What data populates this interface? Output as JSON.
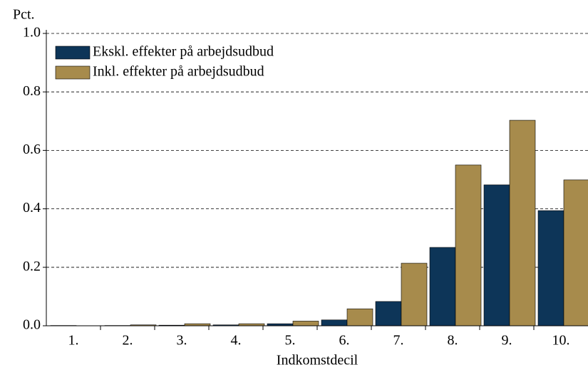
{
  "chart_data": {
    "type": "bar",
    "y_unit_label": "Pct.",
    "x_label": "Indkomstdecil",
    "categories": [
      "1.",
      "2.",
      "3.",
      "4.",
      "5.",
      "6.",
      "7.",
      "8.",
      "9.",
      "10."
    ],
    "series": [
      {
        "name": "Ekskl. effekter på arbejdsudbud",
        "color": "#0d3558",
        "values": [
          0.001,
          0.001,
          0.002,
          0.003,
          0.007,
          0.02,
          0.083,
          0.268,
          0.482,
          0.394
        ]
      },
      {
        "name": "Inkl. effekter på arbejdsudbud",
        "color": "#a78b4c",
        "values": [
          0.0005,
          0.003,
          0.007,
          0.007,
          0.016,
          0.058,
          0.214,
          0.55,
          0.703,
          0.499
        ]
      }
    ],
    "ylim": [
      0,
      1
    ],
    "yticks": [
      {
        "value": 0,
        "label": "0.0"
      },
      0.2,
      0.4,
      0.6,
      0.8,
      {
        "value": 1,
        "label": "1.0"
      }
    ],
    "grid": true,
    "legend": "upper-left"
  }
}
